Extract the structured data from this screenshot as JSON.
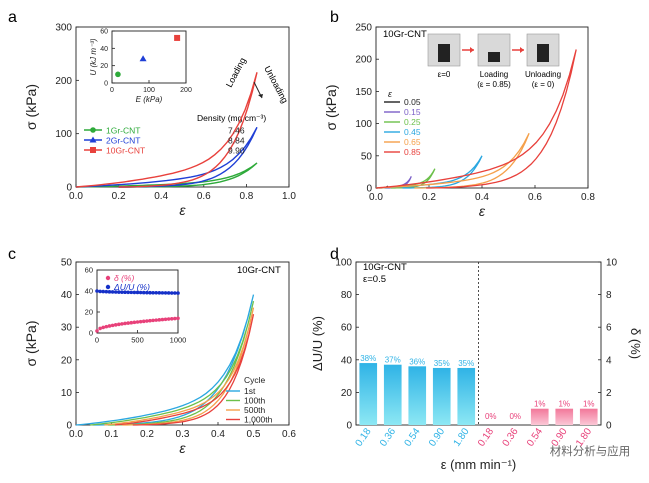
{
  "figure": {
    "watermark": "材料分析与应用",
    "colors": {
      "green": "#2eaa3a",
      "blue": "#1f3fd6",
      "red": "#e8413c",
      "black": "#222222",
      "purple": "#7b5fc7",
      "lime": "#6cc04a",
      "cyan": "#2aa7e0",
      "orange": "#f5a04a",
      "pink": "#e8417a",
      "navy": "#1530c8",
      "bar_top": "#2fb3e6",
      "bar_bottom": "#8de8f4",
      "bar_pink_top": "#f2779a",
      "bar_pink_bottom": "#fbc7d6"
    }
  },
  "chart_data": [
    {
      "panel": "a",
      "type": "line",
      "xlabel": "ε",
      "ylabel": "σ (kPa)",
      "xlim": [
        0.0,
        1.0
      ],
      "ylim": [
        0,
        300
      ],
      "xticks": [
        "0.0",
        "0.2",
        "0.4",
        "0.6",
        "0.8",
        "1.0"
      ],
      "yticks": [
        "0",
        "100",
        "200",
        "300"
      ],
      "annotations": [
        "Loading",
        "Unloading"
      ],
      "legend_header": "Density (mg cm⁻³)",
      "series": [
        {
          "name": "1Gr-CNT",
          "density": "7.46",
          "color": "green",
          "max_strain": 0.85,
          "max_stress": 45
        },
        {
          "name": "2Gr-CNT",
          "density": "8.84",
          "color": "blue",
          "max_strain": 0.85,
          "max_stress": 112
        },
        {
          "name": "10Gr-CNT",
          "density": "9.90",
          "color": "red",
          "max_strain": 0.85,
          "max_stress": 215
        }
      ],
      "inset": {
        "type": "scatter",
        "xlabel": "E (kPa)",
        "ylabel": "U (kJ m⁻³)",
        "xlim": [
          0,
          250
        ],
        "ylim": [
          0,
          60
        ],
        "xticks": [
          "0",
          "100",
          "200"
        ],
        "yticks": [
          "0",
          "20",
          "40",
          "60"
        ],
        "points": [
          {
            "name": "1Gr-CNT",
            "x": 20,
            "y": 10,
            "color": "green",
            "marker": "circle"
          },
          {
            "name": "2Gr-CNT",
            "x": 105,
            "y": 28,
            "color": "blue",
            "marker": "triangle"
          },
          {
            "name": "10Gr-CNT",
            "x": 220,
            "y": 52,
            "color": "red",
            "marker": "square"
          }
        ]
      }
    },
    {
      "panel": "b",
      "type": "line",
      "xlabel": "ε",
      "ylabel": "σ (kPa)",
      "xlim": [
        0.0,
        0.9
      ],
      "ylim": [
        0,
        250
      ],
      "xticks": [
        "0.0",
        "0.2",
        "0.4",
        "0.6",
        "0.8"
      ],
      "yticks": [
        "0",
        "50",
        "100",
        "150",
        "200",
        "250"
      ],
      "sample": "10Gr-CNT",
      "legend_title": "ε",
      "photo_labels": [
        "ε=0",
        "Loading",
        "(ε = 0.85)",
        "Unloading",
        "(ε = 0)"
      ],
      "series": [
        {
          "name": "0.05",
          "color": "black",
          "max_strain": 0.05,
          "max_stress": 3
        },
        {
          "name": "0.15",
          "color": "purple",
          "max_strain": 0.15,
          "max_stress": 18
        },
        {
          "name": "0.25",
          "color": "lime",
          "max_strain": 0.25,
          "max_stress": 30
        },
        {
          "name": "0.45",
          "color": "cyan",
          "max_strain": 0.45,
          "max_stress": 50
        },
        {
          "name": "0.65",
          "color": "orange",
          "max_strain": 0.65,
          "max_stress": 85
        },
        {
          "name": "0.85",
          "color": "red",
          "max_strain": 0.85,
          "max_stress": 215
        }
      ]
    },
    {
      "panel": "c",
      "type": "line",
      "xlabel": "ε",
      "ylabel": "σ (kPa)",
      "xlim": [
        0.0,
        0.6
      ],
      "ylim": [
        0,
        50
      ],
      "xticks": [
        "0.0",
        "0.1",
        "0.2",
        "0.3",
        "0.4",
        "0.5",
        "0.6"
      ],
      "yticks": [
        "0",
        "10",
        "20",
        "30",
        "40",
        "50"
      ],
      "sample": "10Gr-CNT",
      "legend_title": "Cycle",
      "series": [
        {
          "name": "1st",
          "color": "cyan",
          "offset": 0.0,
          "max_stress": 40
        },
        {
          "name": "100th",
          "color": "lime",
          "offset": 0.04,
          "max_stress": 38
        },
        {
          "name": "500th",
          "color": "orange",
          "offset": 0.08,
          "max_stress": 36
        },
        {
          "name": "1,000th",
          "color": "red",
          "offset": 0.11,
          "max_stress": 34
        }
      ],
      "inset": {
        "type": "scatter",
        "xlim": [
          0,
          1000
        ],
        "ylim": [
          0,
          60
        ],
        "xticks": [
          "0",
          "500",
          "1000"
        ],
        "yticks": [
          "0",
          "20",
          "40",
          "60"
        ],
        "legend": [
          "δ (%)",
          "ΔU/U (%)"
        ],
        "series": [
          {
            "name": "δ (%)",
            "color": "pink",
            "start": 2,
            "end": 14
          },
          {
            "name": "ΔU/U (%)",
            "color": "navy",
            "start": 40,
            "end": 38
          }
        ]
      }
    },
    {
      "panel": "d",
      "type": "bar",
      "xlabel": "ε (mm min⁻¹)",
      "ylabel_left": "ΔU/U (%)",
      "ylabel_right": "δ (%)",
      "ylim_left": [
        0,
        100
      ],
      "ylim_right": [
        0,
        10
      ],
      "yticks_left": [
        "0",
        "20",
        "40",
        "60",
        "80",
        "100"
      ],
      "yticks_right": [
        "0",
        "2",
        "4",
        "6",
        "8",
        "10"
      ],
      "sample": "10Gr-CNT",
      "condition": "ε=0.5",
      "categories": [
        "0.18",
        "0.36",
        "0.54",
        "0.90",
        "1.80"
      ],
      "left_values": [
        38,
        37,
        36,
        35,
        35
      ],
      "left_labels": [
        "38%",
        "37%",
        "36%",
        "35%",
        "35%"
      ],
      "right_values": [
        0,
        0,
        1,
        1,
        1
      ],
      "right_labels": [
        "0%",
        "0%",
        "1%",
        "1%",
        "1%"
      ]
    }
  ],
  "panel_labels": [
    "a",
    "b",
    "c",
    "d"
  ]
}
